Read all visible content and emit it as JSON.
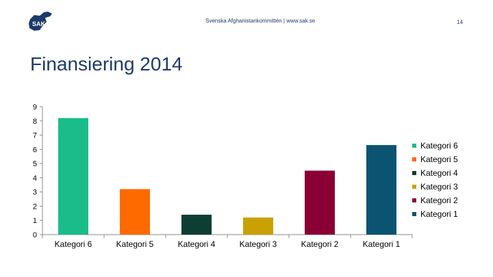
{
  "header": {
    "logo_text": "SAK",
    "org_text": "Svenska Afghanistankommittén | www.sak.se",
    "page_number": "14"
  },
  "title": "Finansiering 2014",
  "colors": {
    "title": "#1d3a6a",
    "axis": "#8a8a8a",
    "logo": "#1d3a6a"
  },
  "chart_data": {
    "type": "bar",
    "title": "Finansiering 2014",
    "xlabel": "",
    "ylabel": "",
    "ylim": [
      0,
      9
    ],
    "yticks": [
      0,
      1,
      2,
      3,
      4,
      5,
      6,
      7,
      8,
      9
    ],
    "categories": [
      "Kategori 6",
      "Kategori 5",
      "Kategori 4",
      "Kategori 3",
      "Kategori 2",
      "Kategori 1"
    ],
    "values": [
      8.2,
      3.2,
      1.4,
      1.2,
      4.5,
      6.3
    ],
    "bar_colors": [
      "#1abc8a",
      "#ff6a00",
      "#0e3d34",
      "#c9a100",
      "#8b0034",
      "#0b5471"
    ],
    "legend": [
      {
        "label": "Kategori 6",
        "color": "#1abc8a"
      },
      {
        "label": "Kategori 5",
        "color": "#ff6a00"
      },
      {
        "label": "Kategori 4",
        "color": "#0e3d34"
      },
      {
        "label": "Kategori 3",
        "color": "#c9a100"
      },
      {
        "label": "Kategori 2",
        "color": "#8b0034"
      },
      {
        "label": "Kategori 1",
        "color": "#0b5471"
      }
    ],
    "legend_position": "right",
    "grid": false
  }
}
